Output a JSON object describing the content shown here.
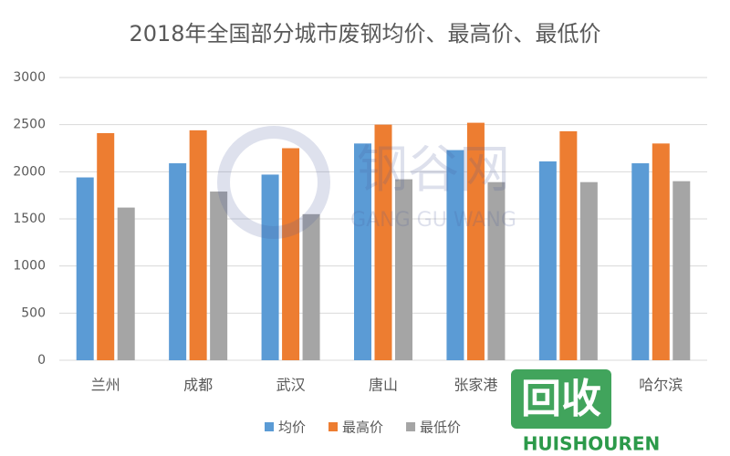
{
  "chart_data": {
    "type": "bar",
    "title": "2018年全国部分城市废钢均价、最高价、最低价",
    "categories": [
      "兰州",
      "成都",
      "武汉",
      "唐山",
      "张家港",
      null,
      "哈尔滨"
    ],
    "series": [
      {
        "name": "均价",
        "color": "#5b9bd5",
        "values": [
          1940,
          2090,
          1970,
          2300,
          2230,
          2110,
          2090
        ]
      },
      {
        "name": "最高价",
        "color": "#ed7d31",
        "values": [
          2410,
          2440,
          2250,
          2500,
          2520,
          2430,
          2300
        ]
      },
      {
        "name": "最低价",
        "color": "#a5a5a5",
        "values": [
          1620,
          1790,
          1550,
          1920,
          1890,
          1890,
          1900
        ]
      }
    ],
    "ylim": [
      0,
      3000
    ],
    "yticks": [
      0,
      500,
      1000,
      1500,
      2000,
      2500,
      3000
    ],
    "grid": true,
    "legend": "bottom"
  },
  "watermarks": {
    "site": "钢谷网",
    "site_pinyin": "GANG GU WANG",
    "logo": "回收",
    "logo_pinyin": "HUISHOUREN"
  }
}
